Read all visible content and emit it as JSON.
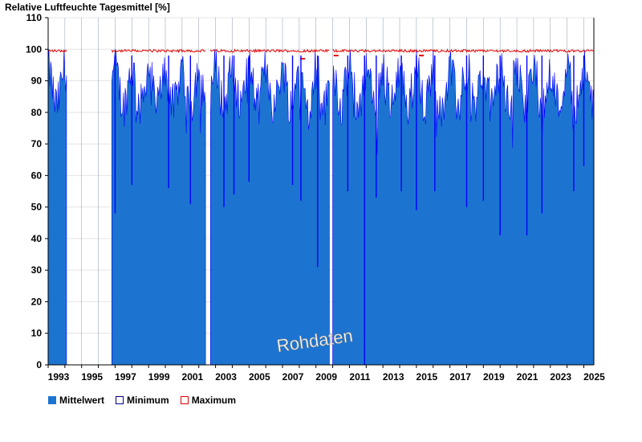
{
  "chart_data": {
    "type": "bar",
    "title": "Relative Luftfeuchte Tagesmittel [%]",
    "ylim": [
      0,
      110
    ],
    "yticks": [
      0,
      10,
      20,
      30,
      40,
      50,
      60,
      70,
      80,
      90,
      100,
      110
    ],
    "xlim": [
      1993.0,
      2025.6
    ],
    "xticks": [
      "1993",
      "1995",
      "1997",
      "1999",
      "2001",
      "2003",
      "2005",
      "2007",
      "2009",
      "2011",
      "2013",
      "2015",
      "2017",
      "2019",
      "2021",
      "2023",
      "2025"
    ],
    "grid": true,
    "legend_position": "bottom-left",
    "watermark": "Rohdaten",
    "data_periods": [
      {
        "start": 1993.0,
        "end": 1994.1
      },
      {
        "start": 1996.8,
        "end": 2002.4
      },
      {
        "start": 2002.7,
        "end": 2009.8
      },
      {
        "start": 2010.0,
        "end": 2025.6
      }
    ],
    "series": [
      {
        "name": "Mittelwert",
        "color": "#1c74d0",
        "typical_range": [
          70,
          100
        ],
        "notable_dips": [
          {
            "x": 1997.0,
            "y": 48
          },
          {
            "x": 1998.0,
            "y": 57
          },
          {
            "x": 2000.2,
            "y": 56
          },
          {
            "x": 2001.5,
            "y": 51
          },
          {
            "x": 2003.5,
            "y": 50
          },
          {
            "x": 2004.1,
            "y": 54
          },
          {
            "x": 2005.0,
            "y": 58
          },
          {
            "x": 2007.6,
            "y": 57
          },
          {
            "x": 2008.1,
            "y": 52
          },
          {
            "x": 2009.1,
            "y": 31
          },
          {
            "x": 2010.9,
            "y": 55
          },
          {
            "x": 2011.9,
            "y": 0
          },
          {
            "x": 2012.6,
            "y": 53
          },
          {
            "x": 2014.1,
            "y": 55
          },
          {
            "x": 2015.0,
            "y": 49
          },
          {
            "x": 2016.1,
            "y": 55
          },
          {
            "x": 2018.0,
            "y": 50
          },
          {
            "x": 2019.0,
            "y": 52
          },
          {
            "x": 2020.0,
            "y": 41
          },
          {
            "x": 2021.6,
            "y": 41
          },
          {
            "x": 2022.5,
            "y": 48
          },
          {
            "x": 2024.4,
            "y": 55
          },
          {
            "x": 2025.0,
            "y": 63
          }
        ]
      },
      {
        "name": "Minimum",
        "color": "#0000ff"
      },
      {
        "name": "Maximum",
        "color": "#e00000",
        "typical_value": 100,
        "dips": [
          {
            "x": 2008.2,
            "y": 97
          },
          {
            "x": 2010.2,
            "y": 98
          },
          {
            "x": 2015.3,
            "y": 98
          }
        ]
      }
    ]
  }
}
